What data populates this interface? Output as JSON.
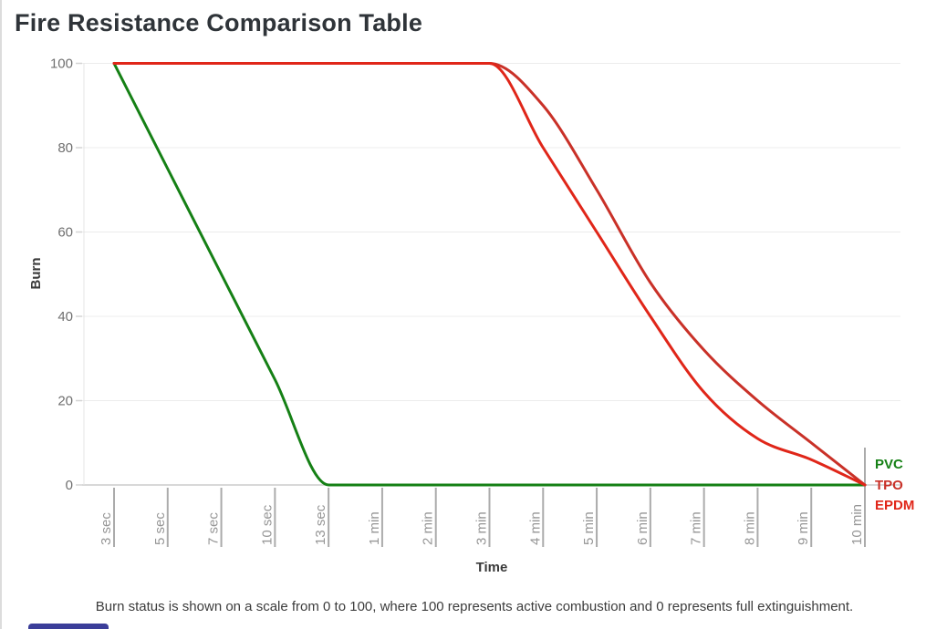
{
  "page": {
    "caption": "Burn status is shown on a scale from 0 to 100, where 100 represents active combustion and 0 represents full extinguishment."
  },
  "chart_data": {
    "type": "line",
    "title": "Fire Resistance Comparison Table",
    "xlabel": "Time",
    "ylabel": "Burn",
    "ylim": [
      0,
      100
    ],
    "yticks": [
      0,
      20,
      40,
      60,
      80,
      100
    ],
    "grid": "horizontal",
    "legend_position": "end-of-line",
    "line_style": "smooth-monotone",
    "categories": [
      "3 sec",
      "5 sec",
      "7 sec",
      "10 sec",
      "13 sec",
      "1 min",
      "2 min",
      "3 min",
      "4 min",
      "5 min",
      "6 min",
      "7 min",
      "8 min",
      "9 min",
      "10 min"
    ],
    "series": [
      {
        "name": "PVC",
        "color": "#158015",
        "values": [
          100,
          75,
          50,
          25,
          0,
          0,
          0,
          0,
          0,
          0,
          0,
          0,
          0,
          0,
          0
        ]
      },
      {
        "name": "TPO",
        "color": "#c93128",
        "values": [
          100,
          100,
          100,
          100,
          100,
          100,
          100,
          100,
          90,
          70,
          48,
          32,
          20,
          10,
          0
        ]
      },
      {
        "name": "EPDM",
        "color": "#e02619",
        "values": [
          100,
          100,
          100,
          100,
          100,
          100,
          100,
          100,
          80,
          60,
          40,
          22,
          11,
          6,
          0
        ]
      }
    ]
  },
  "colors": {
    "grid_line": "#ececec",
    "baseline": "#cccccc",
    "tick_mark": "#ababab",
    "y_tick_label": "#6f6f6f",
    "x_tick_label": "#969696",
    "axis_label": "#3a3a3a",
    "partial_button": "#3b3e99"
  }
}
